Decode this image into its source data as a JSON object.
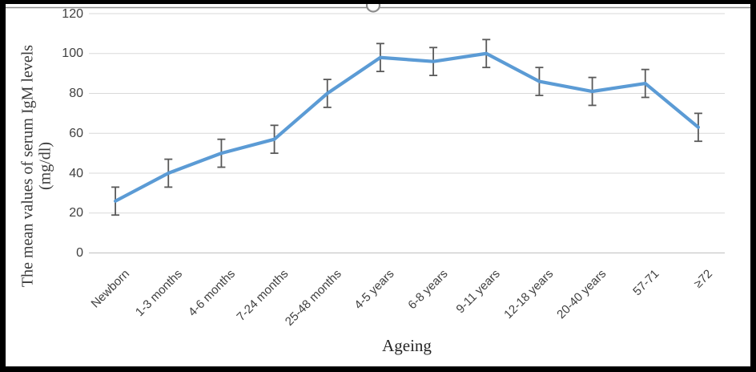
{
  "figure": {
    "border_color": "#000000",
    "frame_edge_color": "#8c8c8c",
    "handle_icon": "resize-handle"
  },
  "chart_data": {
    "type": "line",
    "title": "",
    "categories": [
      "Newborn",
      "1-3 months",
      "4-6 months",
      "7-24 months",
      "25-48 months",
      "4-5 years",
      "6-8 years",
      "9-11 years",
      "12-18 years",
      "20-40 years",
      "57-71",
      "≥72"
    ],
    "series": [
      {
        "values": [
          26,
          40,
          50,
          57,
          80,
          98,
          96,
          100,
          86,
          81,
          85,
          63
        ],
        "errors": [
          7,
          7,
          7,
          7,
          7,
          7,
          7,
          7,
          7,
          7,
          7,
          7
        ]
      }
    ],
    "xlabel": "Ageing",
    "ylabel_lines": [
      "The mean values of serum IgM levels",
      "(mg/dl)"
    ],
    "ylim": [
      0,
      120
    ],
    "yticks": [
      0,
      20,
      40,
      60,
      80,
      100,
      120
    ],
    "grid": true,
    "legend": "none",
    "markers": "none",
    "colors": {
      "line": "#5B9BD5",
      "error_bar": "#595959",
      "gridline": "#D9D9D9",
      "axis_line": "#BFBFBF",
      "tick_label": "#404040",
      "axis_title": "#3a3a3a"
    }
  }
}
